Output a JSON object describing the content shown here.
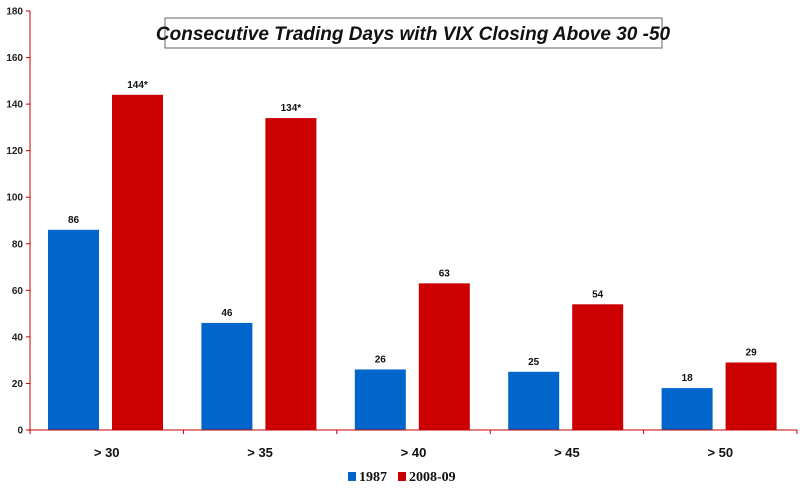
{
  "chart_data": {
    "type": "bar",
    "title": "Consecutive Trading Days with VIX Closing Above 30 -50",
    "categories": [
      "> 30",
      "> 35",
      "> 40",
      "> 45",
      "> 50"
    ],
    "series": [
      {
        "name": "1987",
        "color": "#0066cc",
        "values": [
          86,
          46,
          26,
          25,
          18
        ],
        "labels": [
          "86",
          "46",
          "26",
          "25",
          "18"
        ]
      },
      {
        "name": "2008-09",
        "color": "#cc0000",
        "values": [
          144,
          134,
          63,
          54,
          29
        ],
        "labels": [
          "144*",
          "134*",
          "63",
          "54",
          "29"
        ]
      }
    ],
    "ylim": [
      0,
      180
    ],
    "yticks": [
      "0",
      "20",
      "40",
      "60",
      "80",
      "100",
      "120",
      "140",
      "160",
      "180"
    ],
    "xlabel": "",
    "ylabel": "",
    "grid": false,
    "legend_position": "bottom-center"
  }
}
